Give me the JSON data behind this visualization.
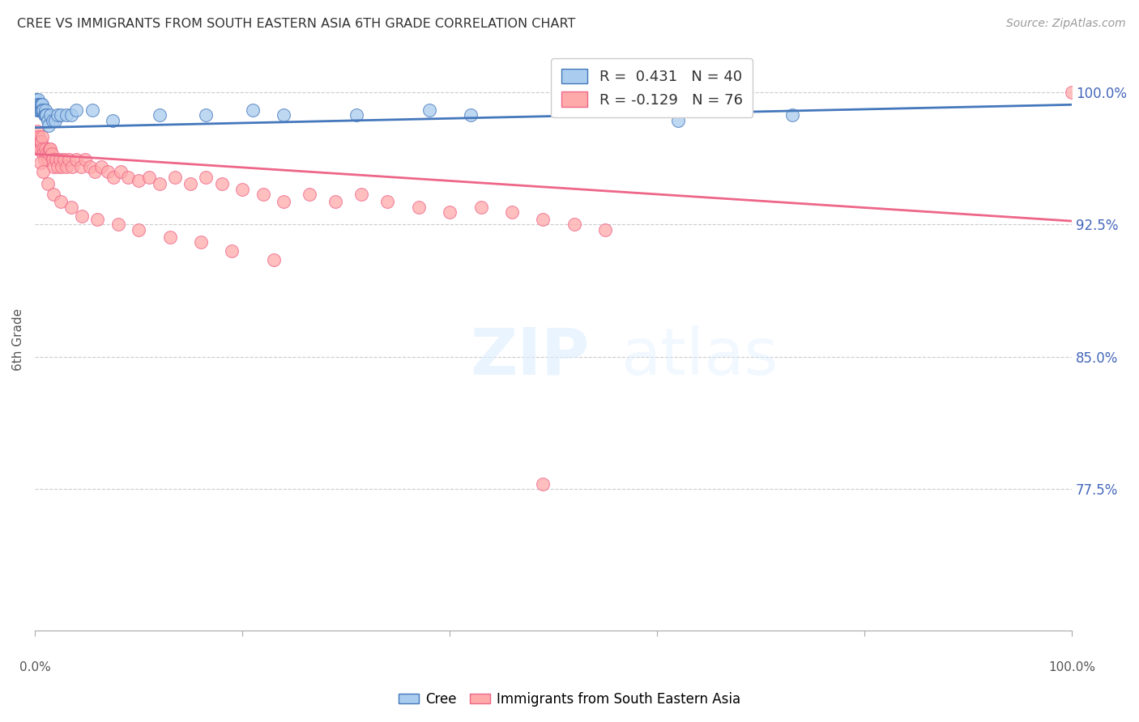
{
  "title": "CREE VS IMMIGRANTS FROM SOUTH EASTERN ASIA 6TH GRADE CORRELATION CHART",
  "source": "Source: ZipAtlas.com",
  "ylabel": "6th Grade",
  "ytick_labels": [
    "100.0%",
    "92.5%",
    "85.0%",
    "77.5%"
  ],
  "ytick_values": [
    1.0,
    0.925,
    0.85,
    0.775
  ],
  "xlim": [
    0.0,
    1.0
  ],
  "ylim": [
    0.695,
    1.025
  ],
  "blue_color": "#AACCEE",
  "pink_color": "#FFAAAA",
  "line_blue": "#4477BB",
  "line_pink": "#EE6688",
  "cree_x": [
    0.001,
    0.002,
    0.002,
    0.003,
    0.003,
    0.003,
    0.004,
    0.004,
    0.005,
    0.005,
    0.006,
    0.006,
    0.007,
    0.007,
    0.008,
    0.009,
    0.01,
    0.01,
    0.011,
    0.012,
    0.013,
    0.015,
    0.017,
    0.019,
    0.022,
    0.025,
    0.03,
    0.035,
    0.04,
    0.055,
    0.075,
    0.12,
    0.165,
    0.21,
    0.24,
    0.31,
    0.38,
    0.42,
    0.62,
    0.73
  ],
  "cree_y": [
    0.996,
    0.993,
    0.99,
    0.996,
    0.993,
    0.99,
    0.993,
    0.99,
    0.993,
    0.99,
    0.993,
    0.99,
    0.993,
    0.99,
    0.99,
    0.987,
    0.99,
    0.987,
    0.987,
    0.984,
    0.981,
    0.987,
    0.984,
    0.984,
    0.987,
    0.987,
    0.987,
    0.987,
    0.99,
    0.99,
    0.984,
    0.987,
    0.987,
    0.99,
    0.987,
    0.987,
    0.99,
    0.987,
    0.984,
    0.987
  ],
  "sea_x": [
    0.001,
    0.002,
    0.003,
    0.003,
    0.004,
    0.005,
    0.005,
    0.006,
    0.007,
    0.008,
    0.008,
    0.009,
    0.01,
    0.011,
    0.012,
    0.013,
    0.014,
    0.015,
    0.016,
    0.017,
    0.018,
    0.02,
    0.022,
    0.024,
    0.026,
    0.028,
    0.03,
    0.033,
    0.036,
    0.04,
    0.044,
    0.048,
    0.053,
    0.058,
    0.064,
    0.07,
    0.076,
    0.083,
    0.09,
    0.1,
    0.11,
    0.12,
    0.135,
    0.15,
    0.165,
    0.18,
    0.2,
    0.22,
    0.24,
    0.265,
    0.29,
    0.315,
    0.34,
    0.37,
    0.4,
    0.43,
    0.46,
    0.49,
    0.52,
    0.55,
    0.005,
    0.008,
    0.012,
    0.018,
    0.025,
    0.035,
    0.045,
    0.06,
    0.08,
    0.1,
    0.13,
    0.16,
    0.19,
    0.23,
    0.49,
    1.0
  ],
  "sea_y": [
    0.975,
    0.978,
    0.972,
    0.968,
    0.975,
    0.972,
    0.968,
    0.972,
    0.975,
    0.968,
    0.965,
    0.962,
    0.968,
    0.965,
    0.962,
    0.965,
    0.968,
    0.968,
    0.965,
    0.962,
    0.958,
    0.962,
    0.958,
    0.962,
    0.958,
    0.962,
    0.958,
    0.962,
    0.958,
    0.962,
    0.958,
    0.962,
    0.958,
    0.955,
    0.958,
    0.955,
    0.952,
    0.955,
    0.952,
    0.95,
    0.952,
    0.948,
    0.952,
    0.948,
    0.952,
    0.948,
    0.945,
    0.942,
    0.938,
    0.942,
    0.938,
    0.942,
    0.938,
    0.935,
    0.932,
    0.935,
    0.932,
    0.928,
    0.925,
    0.922,
    0.96,
    0.955,
    0.948,
    0.942,
    0.938,
    0.935,
    0.93,
    0.928,
    0.925,
    0.922,
    0.918,
    0.915,
    0.91,
    0.905,
    0.778,
    1.0
  ],
  "blue_line_x": [
    0.0,
    1.0
  ],
  "blue_line_y": [
    0.98,
    0.993
  ],
  "pink_line_x": [
    0.0,
    1.0
  ],
  "pink_line_y": [
    0.965,
    0.927
  ]
}
